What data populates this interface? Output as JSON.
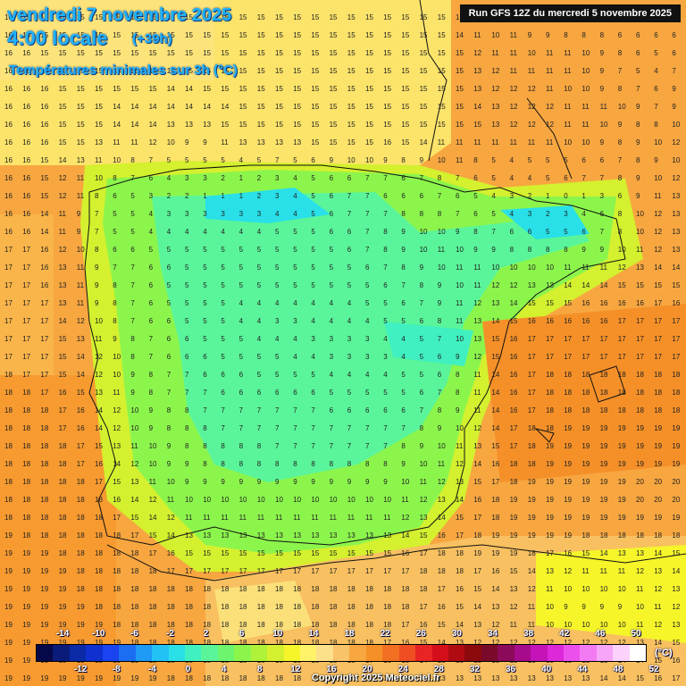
{
  "header": {
    "date_line": "vendredi 7 novembre 2025",
    "time_line": "4:00 locale",
    "lead_time": "(+39h)",
    "subtitle": "Températures minimales sur 3h (°C)",
    "run_info": "Run GFS 12Z du mercredi 5 novembre 2025"
  },
  "legend": {
    "unit": "(°C)",
    "top_labels": [
      "-14",
      "-10",
      "-6",
      "-2",
      "2",
      "6",
      "10",
      "14",
      "18",
      "22",
      "26",
      "30",
      "34",
      "38",
      "42",
      "46",
      "50"
    ],
    "bottom_labels": [
      "-12",
      "-8",
      "-4",
      "0",
      "4",
      "8",
      "12",
      "16",
      "20",
      "24",
      "28",
      "32",
      "36",
      "40",
      "44",
      "48",
      "52"
    ],
    "colors": [
      "#05094a",
      "#0b1b7a",
      "#0b2aa8",
      "#1030d0",
      "#1a44f0",
      "#1b6ef2",
      "#1f9af5",
      "#22c2f5",
      "#29e0e8",
      "#40f0c0",
      "#5af59a",
      "#6ef56e",
      "#8cf54c",
      "#b0f23a",
      "#d4f02e",
      "#f5f52a",
      "#fff36a",
      "#fde08a",
      "#f9c36a",
      "#f7a640",
      "#f59028",
      "#f27022",
      "#ee4e22",
      "#e82424",
      "#d40f1a",
      "#b00b12",
      "#8c0a0e",
      "#7a0a2a",
      "#8c0a5a",
      "#a80a8c",
      "#c414b8",
      "#dc28d8",
      "#ec50ec",
      "#f27af2",
      "#f7a6f7",
      "#fcd2fc",
      "#ffffff"
    ]
  },
  "map_data": {
    "value_rows": [
      "16 15 15 15 15 15 15 15 15 15 15 15 15 15 15 15 15 15 15 15 15 15 15 15 15 12 10 10 10 9 8 8 7 5 7 6 7 6",
      "16 15 15 15 15 15 15 15 15 15 15 15 15 15 15 15 15 15 15 15 15 15 15 15 15 14 11 10 11 9 9 8 8 8 6 6 6 6",
      "16 16 15 15 15 15 15 15 15 15 15 15 15 15 15 15 15 15 15 15 15 15 15 15 15 15 12 11 11 10 11 11 10 9 8 6 5 6",
      "16 16 15 15 15 15 15 15 15 15 15 15 15 15 15 15 15 15 15 15 15 15 15 15 15 15 13 12 11 11 11 11 10 9 7 5 4 7",
      "16 16 16 15 15 15 15 15 15 14 14 15 15 15 15 15 15 15 15 15 15 15 15 15 15 15 13 12 12 12 11 10 10 9 8 7 6 9",
      "16 16 16 15 15 15 14 14 14 14 14 14 14 15 15 15 15 15 15 15 15 15 15 15 15 15 14 13 12 12 12 11 11 11 10 9 7 9",
      "16 16 16 15 15 15 14 14 14 13 13 13 15 15 15 15 15 15 15 15 15 15 15 15 15 15 15 13 12 12 12 11 11 10 9 8 8 10",
      "16 16 16 15 15 13 11 11 12 10 9 9 11 13 13 13 13 15 15 15 15 16 15 14 11 11 11 11 11 11 11 10 10 9 8 9 10 12",
      "16 16 15 14 13 11 10 8 7 5 5 5 5 4 5 7 5 6 9 10 10 9 8 9 10 11 8 5 4 5 5 5 6 6 7 8 9 10",
      "16 16 15 12 11 10 8 7 6 4 3 3 2 1 2 3 4 5 6 6 7 7 6 7 8 7 6 5 4 4 5 6 7 7 8 9 10 12",
      "16 16 15 12 11 8 6 5 3 2 2 1 1 1 2 3 4 5 6 7 7 6 6 6 7 6 5 4 3 2 1 0 1 3 6 9 11 13",
      "16 16 14 11 9 7 5 5 4 3 3 3 3 3 3 4 4 5 6 7 7 7 8 8 8 7 6 5 4 3 2 3 4 6 8 10 12 13",
      "16 16 14 11 9 7 5 5 4 4 4 4 4 4 4 5 5 5 6 6 7 8 9 10 10 9 8 7 6 6 5 5 6 7 8 10 12 13",
      "17 17 16 12 10 8 6 6 5 5 5 5 5 5 5 5 5 5 5 6 7 8 9 10 11 10 9 9 8 8 8 8 9 9 10 11 12 13",
      "17 17 16 13 11 9 7 7 6 6 5 5 5 5 5 5 5 5 5 5 6 7 8 9 10 11 11 10 10 10 10 11 11 11 12 13 14 14",
      "17 17 16 13 11 9 8 7 6 5 5 5 5 5 5 5 5 5 5 5 5 6 7 8 9 10 11 12 12 13 13 14 14 14 15 15 15 15",
      "17 17 17 13 11 9 8 7 6 5 5 5 5 4 4 4 4 4 4 4 5 5 6 7 9 11 12 13 14 15 15 15 16 16 16 16 17 16",
      "17 17 17 14 12 10 8 7 6 6 5 5 5 4 4 3 3 4 4 4 4 5 5 6 8 11 13 14 15 16 16 16 16 16 17 17 17 17",
      "17 17 17 15 13 11 9 8 7 6 6 5 5 5 4 4 4 3 3 3 3 4 4 5 7 10 13 15 16 17 17 17 17 17 17 17 17 17",
      "17 17 17 15 14 12 10 8 7 6 6 6 5 5 5 5 4 4 3 3 3 3 4 5 6 9 12 15 16 17 17 17 17 17 17 17 17 17",
      "18 17 17 15 14 12 10 9 8 7 7 6 6 6 5 5 5 5 4 4 4 4 5 5 6 8 11 14 16 17 18 18 18 18 18 18 18 18",
      "18 18 17 16 15 13 11 9 8 7 7 7 6 6 6 6 6 6 5 5 5 5 5 6 7 8 11 14 16 17 18 18 18 18 18 18 18 18",
      "18 18 18 17 16 14 12 10 9 8 8 7 7 7 7 7 7 7 6 6 6 6 6 7 8 9 11 14 16 17 18 18 18 18 18 18 18 18",
      "18 18 18 17 16 14 12 10 9 8 8 8 7 7 7 7 7 7 7 7 7 7 7 8 9 10 12 14 17 18 18 19 19 19 19 19 19 19",
      "18 18 18 18 17 15 13 11 10 9 8 8 8 8 8 7 7 7 7 7 7 7 8 9 10 11 13 15 17 18 19 19 19 19 19 19 19 19",
      "18 18 18 18 17 16 14 12 10 9 9 8 8 8 8 8 8 8 8 8 8 8 9 10 11 12 14 16 18 18 19 19 19 19 19 19 19 19",
      "18 18 18 18 18 17 15 13 11 10 9 9 9 9 9 9 9 9 9 9 9 9 10 11 12 13 15 17 18 19 19 19 19 19 19 20 20 20",
      "18 18 18 18 18 18 16 14 12 11 10 10 10 10 10 10 10 10 10 10 10 10 11 12 13 14 16 18 19 19 19 19 19 19 19 20 20 20",
      "18 18 18 18 18 18 17 15 14 12 11 11 11 11 11 11 11 11 11 11 11 11 12 13 14 15 17 18 19 19 19 19 19 19 19 19 19 19",
      "19 18 18 18 18 18 18 17 15 14 13 13 13 13 13 13 13 13 13 13 13 13 14 15 16 17 18 19 19 19 19 19 18 18 18 18 18 18",
      "19 19 19 18 18 18 18 18 17 16 15 15 15 15 15 15 15 15 15 15 15 15 16 17 18 18 19 19 19 18 17 16 15 14 13 13 14 15",
      "19 19 19 19 18 18 18 18 18 17 17 17 17 17 17 17 17 17 17 17 17 17 17 18 18 18 17 16 15 14 13 12 11 11 11 12 13 14",
      "19 19 19 19 18 18 18 18 18 18 18 18 18 18 18 18 18 18 18 18 18 18 18 18 17 16 15 14 13 12 11 10 10 10 10 11 12 13",
      "19 19 19 19 19 18 18 18 18 18 18 18 18 18 18 18 18 18 18 18 18 18 18 17 16 15 14 13 12 11 10 9 9 9 9 10 11 12",
      "19 19 19 19 19 19 18 18 18 18 18 18 18 18 18 18 18 18 18 18 18 18 17 16 15 14 13 12 11 11 10 10 10 10 10 11 12 13",
      "19 19 19 19 19 19 19 18 18 18 18 18 18 18 18 18 18 18 18 18 18 17 16 15 14 13 12 12 12 12 12 12 12 12 12 13 14 15",
      "19 19 19 19 19 19 19 19 18 18 18 18 18 18 18 18 18 18 18 18 17 16 15 14 13 13 13 13 13 13 13 13 13 13 14 14 15 16",
      "19 19 19 19 19 19 19 19 19 18 18 18 18 18 18 18 18 18 18 17 16 15 14 13 13 13 13 13 13 13 13 13 13 14 14 15 16 17"
    ],
    "copyright": "Copyright 2025 Meteociel.fr"
  }
}
